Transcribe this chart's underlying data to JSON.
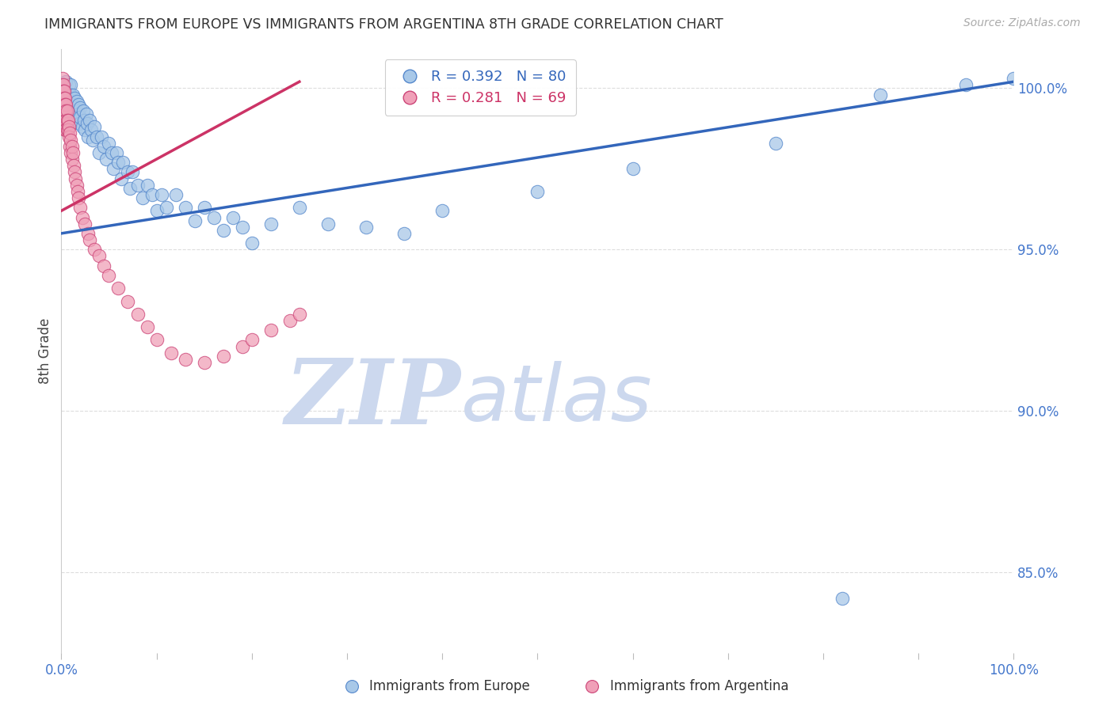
{
  "title": "IMMIGRANTS FROM EUROPE VS IMMIGRANTS FROM ARGENTINA 8TH GRADE CORRELATION CHART",
  "source": "Source: ZipAtlas.com",
  "ylabel": "8th Grade",
  "ytick_labels": [
    "85.0%",
    "90.0%",
    "95.0%",
    "100.0%"
  ],
  "ytick_values": [
    0.85,
    0.9,
    0.95,
    1.0
  ],
  "xlim": [
    0.0,
    1.0
  ],
  "ylim": [
    0.825,
    1.012
  ],
  "blue_label": "Immigrants from Europe",
  "pink_label": "Immigrants from Argentina",
  "blue_R": 0.392,
  "blue_N": 80,
  "pink_R": 0.281,
  "pink_N": 69,
  "blue_color": "#a8c8e8",
  "pink_color": "#f0a0b8",
  "blue_edge_color": "#5588cc",
  "pink_edge_color": "#cc4477",
  "blue_line_color": "#3366bb",
  "pink_line_color": "#cc3366",
  "watermark_zip": "ZIP",
  "watermark_atlas": "atlas",
  "watermark_color": "#ccd8ee",
  "background_color": "#ffffff",
  "grid_color": "#dddddd",
  "blue_trend_x": [
    0.0,
    1.0
  ],
  "blue_trend_y": [
    0.955,
    1.002
  ],
  "pink_trend_x": [
    0.0,
    0.25
  ],
  "pink_trend_y": [
    0.962,
    1.002
  ],
  "blue_x": [
    0.002,
    0.005,
    0.005,
    0.007,
    0.008,
    0.008,
    0.009,
    0.01,
    0.01,
    0.011,
    0.011,
    0.012,
    0.013,
    0.013,
    0.014,
    0.015,
    0.015,
    0.016,
    0.017,
    0.017,
    0.018,
    0.018,
    0.019,
    0.02,
    0.02,
    0.022,
    0.023,
    0.024,
    0.025,
    0.026,
    0.027,
    0.028,
    0.03,
    0.031,
    0.033,
    0.035,
    0.037,
    0.04,
    0.042,
    0.045,
    0.047,
    0.05,
    0.053,
    0.055,
    0.058,
    0.06,
    0.063,
    0.065,
    0.07,
    0.072,
    0.075,
    0.08,
    0.085,
    0.09,
    0.095,
    0.1,
    0.105,
    0.11,
    0.12,
    0.13,
    0.14,
    0.15,
    0.16,
    0.17,
    0.18,
    0.19,
    0.2,
    0.22,
    0.25,
    0.28,
    0.32,
    0.36,
    0.4,
    0.5,
    0.6,
    0.75,
    0.82,
    0.86,
    0.95,
    1.0
  ],
  "blue_y": [
    0.998,
    1.002,
    0.999,
    0.997,
    1.001,
    0.998,
    0.995,
    1.001,
    0.998,
    0.996,
    0.993,
    0.998,
    0.995,
    0.992,
    0.997,
    0.994,
    0.991,
    0.996,
    0.993,
    0.99,
    0.995,
    0.992,
    0.989,
    0.994,
    0.991,
    0.988,
    0.993,
    0.99,
    0.987,
    0.992,
    0.989,
    0.985,
    0.99,
    0.987,
    0.984,
    0.988,
    0.985,
    0.98,
    0.985,
    0.982,
    0.978,
    0.983,
    0.98,
    0.975,
    0.98,
    0.977,
    0.972,
    0.977,
    0.974,
    0.969,
    0.974,
    0.97,
    0.966,
    0.97,
    0.967,
    0.962,
    0.967,
    0.963,
    0.967,
    0.963,
    0.959,
    0.963,
    0.96,
    0.956,
    0.96,
    0.957,
    0.952,
    0.958,
    0.963,
    0.958,
    0.957,
    0.955,
    0.962,
    0.968,
    0.975,
    0.983,
    0.842,
    0.998,
    1.001,
    1.003
  ],
  "pink_x": [
    0.001,
    0.001,
    0.001,
    0.001,
    0.001,
    0.002,
    0.002,
    0.002,
    0.002,
    0.002,
    0.002,
    0.003,
    0.003,
    0.003,
    0.003,
    0.003,
    0.003,
    0.004,
    0.004,
    0.004,
    0.004,
    0.004,
    0.005,
    0.005,
    0.005,
    0.005,
    0.006,
    0.006,
    0.006,
    0.007,
    0.007,
    0.008,
    0.008,
    0.009,
    0.009,
    0.01,
    0.01,
    0.011,
    0.011,
    0.012,
    0.013,
    0.014,
    0.015,
    0.016,
    0.017,
    0.018,
    0.02,
    0.022,
    0.025,
    0.028,
    0.03,
    0.035,
    0.04,
    0.045,
    0.05,
    0.06,
    0.07,
    0.08,
    0.09,
    0.1,
    0.115,
    0.13,
    0.15,
    0.17,
    0.19,
    0.2,
    0.22,
    0.24,
    0.25
  ],
  "pink_y": [
    1.003,
    1.001,
    0.999,
    0.997,
    0.995,
    1.001,
    0.999,
    0.997,
    0.995,
    0.993,
    0.991,
    0.999,
    0.997,
    0.995,
    0.993,
    0.991,
    0.989,
    0.997,
    0.995,
    0.993,
    0.99,
    0.987,
    0.995,
    0.993,
    0.99,
    0.987,
    0.993,
    0.99,
    0.987,
    0.99,
    0.987,
    0.988,
    0.985,
    0.986,
    0.982,
    0.984,
    0.98,
    0.982,
    0.978,
    0.98,
    0.976,
    0.974,
    0.972,
    0.97,
    0.968,
    0.966,
    0.963,
    0.96,
    0.958,
    0.955,
    0.953,
    0.95,
    0.948,
    0.945,
    0.942,
    0.938,
    0.934,
    0.93,
    0.926,
    0.922,
    0.918,
    0.916,
    0.915,
    0.917,
    0.92,
    0.922,
    0.925,
    0.928,
    0.93
  ]
}
